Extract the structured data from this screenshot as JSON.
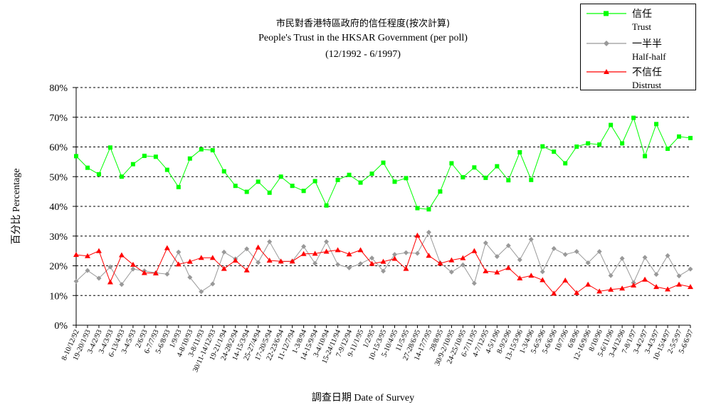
{
  "chart_data": {
    "type": "line",
    "title": "市民對香港特區政府的信任程度(按次計算)",
    "subtitle": "People's Trust in the HKSAR Government (per poll)",
    "date_range": "(12/1992 -  6/1997)",
    "ylabel": "百分比 Percentage",
    "xlabel": "調查日期 Date of Survey",
    "ylim": [
      0,
      80
    ],
    "yticks": [
      "0%",
      "10%",
      "20%",
      "30%",
      "40%",
      "50%",
      "60%",
      "70%",
      "80%"
    ],
    "grid": true,
    "legend_position": "top-right",
    "categories": [
      "8-10/12/92",
      "19-20/1/93",
      "3-4/2/93",
      "3-4/3/93",
      "6-13/4/93",
      "3-4/5/93",
      "2/6/93",
      "6-7/7/93",
      "5-6/8/93",
      "1/9/93",
      "4-8/10/93",
      "3-8/11/93",
      "30/11-14/12/93",
      "19-21/1/94",
      "24-28/2/94",
      "14-15/3/94",
      "25-27/4/94",
      "17-20/5/94",
      "22-23/6/94",
      "11-12/7/94",
      "1-3/8/94",
      "14-15/9/94",
      "3-4/10/94",
      "15-24/11/94",
      "7-9/12/94",
      "9-11/1/95",
      "1/2/95",
      "10-15/3/95",
      "5-10/4/95",
      "11/5/95",
      "27-28/6/95",
      "14-17/7/95",
      "28/8/95",
      "30/9-2/10/95",
      "24-25/10/95",
      "6-7/11/95",
      "4-7/12/95",
      "4-5/1/96",
      "8-9/2/96",
      "13-15/3/96",
      "1-3/4/96",
      "5-6/5/96",
      "5-6/6/96",
      "10/7/96",
      "6/8/96",
      "12-16/9/96",
      "8/10/96",
      "5-6/11/96",
      "3-4/12/96",
      "7-8/1/97",
      "3-4/2/97",
      "3-4/3/97",
      "10-15/4/97",
      "2-5/5/97",
      "5-6/6/97"
    ],
    "series": [
      {
        "name": "信任",
        "name_en": "Trust",
        "color": "#00ff00",
        "marker": "square",
        "values": [
          56.9,
          53.0,
          50.8,
          59.8,
          50.0,
          54.2,
          57.0,
          56.7,
          52.3,
          46.5,
          56.1,
          59.2,
          58.9,
          51.8,
          46.9,
          44.9,
          48.3,
          44.6,
          50.0,
          46.9,
          45.2,
          48.5,
          40.3,
          48.9,
          50.6,
          48.0,
          51.0,
          54.7,
          48.3,
          49.5,
          39.4,
          39.0,
          45.0,
          54.5,
          49.8,
          53.1,
          49.6,
          53.5,
          48.8,
          58.2,
          48.9,
          60.2,
          58.4,
          54.5,
          60.1,
          61.2,
          60.8,
          67.4,
          61.2,
          69.8,
          56.9,
          67.7,
          59.4,
          63.5,
          63.0
        ]
      },
      {
        "name": "一半半",
        "name_en": "Half-half",
        "color": "#999999",
        "marker": "diamond",
        "values": [
          14.8,
          18.4,
          15.8,
          19.6,
          13.7,
          18.9,
          18.3,
          17.6,
          17.2,
          24.6,
          16.1,
          11.3,
          13.9,
          24.6,
          22.3,
          25.7,
          21.1,
          28.1,
          21.4,
          21.5,
          26.5,
          20.8,
          28.1,
          20.4,
          19.3,
          20.7,
          22.6,
          18.2,
          23.8,
          24.4,
          24.2,
          31.3,
          21.0,
          17.9,
          20.3,
          14.1,
          27.7,
          23.1,
          26.8,
          22.0,
          28.9,
          18.0,
          25.8,
          23.8,
          24.8,
          21.0,
          24.8,
          16.7,
          22.5,
          14.3,
          22.8,
          17.1,
          23.4,
          16.6,
          18.9
        ]
      },
      {
        "name": "不信任",
        "name_en": "Distrust",
        "color": "#ff0000",
        "marker": "triangle",
        "values": [
          23.7,
          23.3,
          25.0,
          14.5,
          23.6,
          20.4,
          17.6,
          17.5,
          26.0,
          20.5,
          21.4,
          22.7,
          22.7,
          19.0,
          21.8,
          18.5,
          26.2,
          21.8,
          21.5,
          21.5,
          24.0,
          24.1,
          24.8,
          25.3,
          23.9,
          25.3,
          20.7,
          21.4,
          22.4,
          19.0,
          30.2,
          23.4,
          20.8,
          21.9,
          22.6,
          25.0,
          18.2,
          17.8,
          19.3,
          15.8,
          16.7,
          15.2,
          10.7,
          15.1,
          10.9,
          13.7,
          11.4,
          12.0,
          12.4,
          13.4,
          15.4,
          12.9,
          12.1,
          13.7,
          12.9
        ]
      }
    ]
  }
}
